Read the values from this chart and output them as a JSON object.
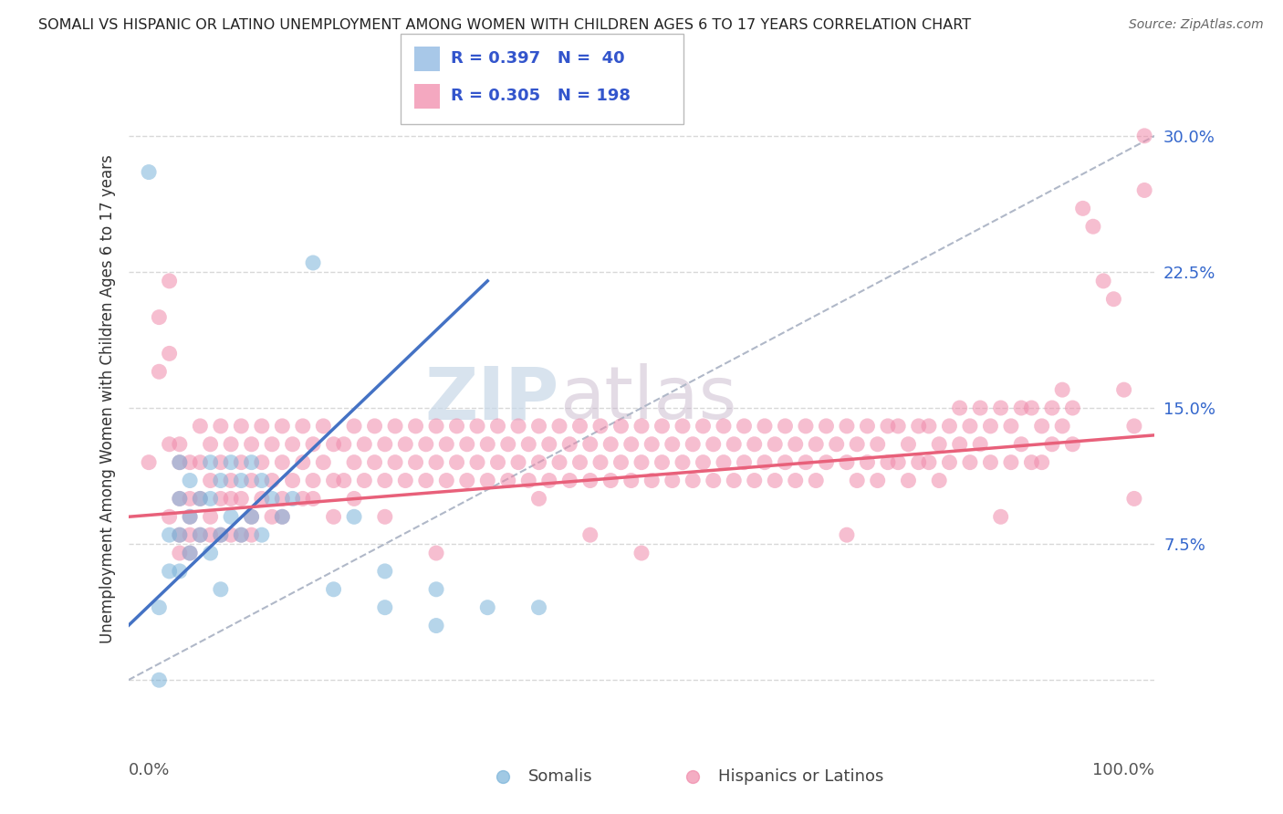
{
  "title": "SOMALI VS HISPANIC OR LATINO UNEMPLOYMENT AMONG WOMEN WITH CHILDREN AGES 6 TO 17 YEARS CORRELATION CHART",
  "source": "Source: ZipAtlas.com",
  "ylabel": "Unemployment Among Women with Children Ages 6 to 17 years",
  "yticks": [
    0.0,
    0.075,
    0.15,
    0.225,
    0.3
  ],
  "ytick_labels": [
    "",
    "7.5%",
    "15.0%",
    "22.5%",
    "30.0%"
  ],
  "xlim": [
    0.0,
    1.0
  ],
  "ylim": [
    -0.02,
    0.33
  ],
  "watermark_zip": "ZIP",
  "watermark_atlas": "atlas",
  "background_color": "#ffffff",
  "grid_color": "#d8d8d8",
  "somali_color": "#7ab3d9",
  "hispanic_color": "#f08aaa",
  "somali_line_color": "#4472c4",
  "hispanic_line_color": "#e8607a",
  "ref_line_color": "#b0b8c8",
  "somali_scatter": [
    [
      0.02,
      0.28
    ],
    [
      0.03,
      0.0
    ],
    [
      0.03,
      0.04
    ],
    [
      0.04,
      0.08
    ],
    [
      0.04,
      0.06
    ],
    [
      0.05,
      0.12
    ],
    [
      0.05,
      0.1
    ],
    [
      0.05,
      0.08
    ],
    [
      0.05,
      0.06
    ],
    [
      0.06,
      0.11
    ],
    [
      0.06,
      0.09
    ],
    [
      0.06,
      0.07
    ],
    [
      0.07,
      0.1
    ],
    [
      0.07,
      0.08
    ],
    [
      0.08,
      0.12
    ],
    [
      0.08,
      0.1
    ],
    [
      0.08,
      0.07
    ],
    [
      0.09,
      0.11
    ],
    [
      0.09,
      0.08
    ],
    [
      0.09,
      0.05
    ],
    [
      0.1,
      0.12
    ],
    [
      0.1,
      0.09
    ],
    [
      0.11,
      0.11
    ],
    [
      0.11,
      0.08
    ],
    [
      0.12,
      0.12
    ],
    [
      0.12,
      0.09
    ],
    [
      0.13,
      0.11
    ],
    [
      0.13,
      0.08
    ],
    [
      0.14,
      0.1
    ],
    [
      0.15,
      0.09
    ],
    [
      0.16,
      0.1
    ],
    [
      0.18,
      0.23
    ],
    [
      0.2,
      0.05
    ],
    [
      0.22,
      0.09
    ],
    [
      0.25,
      0.06
    ],
    [
      0.25,
      0.04
    ],
    [
      0.3,
      0.05
    ],
    [
      0.3,
      0.03
    ],
    [
      0.35,
      0.04
    ],
    [
      0.4,
      0.04
    ]
  ],
  "hispanic_scatter": [
    [
      0.02,
      0.12
    ],
    [
      0.03,
      0.2
    ],
    [
      0.03,
      0.17
    ],
    [
      0.04,
      0.22
    ],
    [
      0.04,
      0.18
    ],
    [
      0.04,
      0.13
    ],
    [
      0.04,
      0.09
    ],
    [
      0.05,
      0.12
    ],
    [
      0.05,
      0.1
    ],
    [
      0.05,
      0.08
    ],
    [
      0.05,
      0.13
    ],
    [
      0.05,
      0.07
    ],
    [
      0.06,
      0.12
    ],
    [
      0.06,
      0.1
    ],
    [
      0.06,
      0.09
    ],
    [
      0.06,
      0.08
    ],
    [
      0.06,
      0.07
    ],
    [
      0.07,
      0.14
    ],
    [
      0.07,
      0.12
    ],
    [
      0.07,
      0.1
    ],
    [
      0.07,
      0.08
    ],
    [
      0.08,
      0.13
    ],
    [
      0.08,
      0.11
    ],
    [
      0.08,
      0.09
    ],
    [
      0.08,
      0.08
    ],
    [
      0.09,
      0.14
    ],
    [
      0.09,
      0.12
    ],
    [
      0.09,
      0.1
    ],
    [
      0.09,
      0.08
    ],
    [
      0.1,
      0.13
    ],
    [
      0.1,
      0.11
    ],
    [
      0.1,
      0.1
    ],
    [
      0.1,
      0.08
    ],
    [
      0.11,
      0.14
    ],
    [
      0.11,
      0.12
    ],
    [
      0.11,
      0.1
    ],
    [
      0.11,
      0.08
    ],
    [
      0.12,
      0.13
    ],
    [
      0.12,
      0.11
    ],
    [
      0.12,
      0.09
    ],
    [
      0.12,
      0.08
    ],
    [
      0.13,
      0.14
    ],
    [
      0.13,
      0.12
    ],
    [
      0.13,
      0.1
    ],
    [
      0.14,
      0.13
    ],
    [
      0.14,
      0.11
    ],
    [
      0.14,
      0.09
    ],
    [
      0.15,
      0.14
    ],
    [
      0.15,
      0.12
    ],
    [
      0.15,
      0.1
    ],
    [
      0.15,
      0.09
    ],
    [
      0.16,
      0.13
    ],
    [
      0.16,
      0.11
    ],
    [
      0.17,
      0.14
    ],
    [
      0.17,
      0.12
    ],
    [
      0.17,
      0.1
    ],
    [
      0.18,
      0.13
    ],
    [
      0.18,
      0.11
    ],
    [
      0.18,
      0.1
    ],
    [
      0.19,
      0.14
    ],
    [
      0.19,
      0.12
    ],
    [
      0.2,
      0.13
    ],
    [
      0.2,
      0.11
    ],
    [
      0.2,
      0.09
    ],
    [
      0.21,
      0.13
    ],
    [
      0.21,
      0.11
    ],
    [
      0.22,
      0.14
    ],
    [
      0.22,
      0.12
    ],
    [
      0.22,
      0.1
    ],
    [
      0.23,
      0.13
    ],
    [
      0.23,
      0.11
    ],
    [
      0.24,
      0.14
    ],
    [
      0.24,
      0.12
    ],
    [
      0.25,
      0.13
    ],
    [
      0.25,
      0.11
    ],
    [
      0.25,
      0.09
    ],
    [
      0.26,
      0.14
    ],
    [
      0.26,
      0.12
    ],
    [
      0.27,
      0.13
    ],
    [
      0.27,
      0.11
    ],
    [
      0.28,
      0.14
    ],
    [
      0.28,
      0.12
    ],
    [
      0.29,
      0.13
    ],
    [
      0.29,
      0.11
    ],
    [
      0.3,
      0.14
    ],
    [
      0.3,
      0.12
    ],
    [
      0.3,
      0.07
    ],
    [
      0.31,
      0.13
    ],
    [
      0.31,
      0.11
    ],
    [
      0.32,
      0.14
    ],
    [
      0.32,
      0.12
    ],
    [
      0.33,
      0.13
    ],
    [
      0.33,
      0.11
    ],
    [
      0.34,
      0.14
    ],
    [
      0.34,
      0.12
    ],
    [
      0.35,
      0.13
    ],
    [
      0.35,
      0.11
    ],
    [
      0.36,
      0.14
    ],
    [
      0.36,
      0.12
    ],
    [
      0.37,
      0.13
    ],
    [
      0.37,
      0.11
    ],
    [
      0.38,
      0.14
    ],
    [
      0.38,
      0.12
    ],
    [
      0.39,
      0.13
    ],
    [
      0.39,
      0.11
    ],
    [
      0.4,
      0.14
    ],
    [
      0.4,
      0.12
    ],
    [
      0.4,
      0.1
    ],
    [
      0.41,
      0.13
    ],
    [
      0.41,
      0.11
    ],
    [
      0.42,
      0.14
    ],
    [
      0.42,
      0.12
    ],
    [
      0.43,
      0.13
    ],
    [
      0.43,
      0.11
    ],
    [
      0.44,
      0.14
    ],
    [
      0.44,
      0.12
    ],
    [
      0.45,
      0.13
    ],
    [
      0.45,
      0.11
    ],
    [
      0.45,
      0.08
    ],
    [
      0.46,
      0.14
    ],
    [
      0.46,
      0.12
    ],
    [
      0.47,
      0.13
    ],
    [
      0.47,
      0.11
    ],
    [
      0.48,
      0.14
    ],
    [
      0.48,
      0.12
    ],
    [
      0.49,
      0.13
    ],
    [
      0.49,
      0.11
    ],
    [
      0.5,
      0.14
    ],
    [
      0.5,
      0.12
    ],
    [
      0.5,
      0.07
    ],
    [
      0.51,
      0.13
    ],
    [
      0.51,
      0.11
    ],
    [
      0.52,
      0.14
    ],
    [
      0.52,
      0.12
    ],
    [
      0.53,
      0.13
    ],
    [
      0.53,
      0.11
    ],
    [
      0.54,
      0.14
    ],
    [
      0.54,
      0.12
    ],
    [
      0.55,
      0.13
    ],
    [
      0.55,
      0.11
    ],
    [
      0.56,
      0.14
    ],
    [
      0.56,
      0.12
    ],
    [
      0.57,
      0.13
    ],
    [
      0.57,
      0.11
    ],
    [
      0.58,
      0.14
    ],
    [
      0.58,
      0.12
    ],
    [
      0.59,
      0.13
    ],
    [
      0.59,
      0.11
    ],
    [
      0.6,
      0.14
    ],
    [
      0.6,
      0.12
    ],
    [
      0.61,
      0.13
    ],
    [
      0.61,
      0.11
    ],
    [
      0.62,
      0.14
    ],
    [
      0.62,
      0.12
    ],
    [
      0.63,
      0.13
    ],
    [
      0.63,
      0.11
    ],
    [
      0.64,
      0.14
    ],
    [
      0.64,
      0.12
    ],
    [
      0.65,
      0.13
    ],
    [
      0.65,
      0.11
    ],
    [
      0.66,
      0.14
    ],
    [
      0.66,
      0.12
    ],
    [
      0.67,
      0.13
    ],
    [
      0.67,
      0.11
    ],
    [
      0.68,
      0.14
    ],
    [
      0.68,
      0.12
    ],
    [
      0.69,
      0.13
    ],
    [
      0.7,
      0.14
    ],
    [
      0.7,
      0.12
    ],
    [
      0.7,
      0.08
    ],
    [
      0.71,
      0.13
    ],
    [
      0.71,
      0.11
    ],
    [
      0.72,
      0.14
    ],
    [
      0.72,
      0.12
    ],
    [
      0.73,
      0.13
    ],
    [
      0.73,
      0.11
    ],
    [
      0.74,
      0.14
    ],
    [
      0.74,
      0.12
    ],
    [
      0.75,
      0.14
    ],
    [
      0.75,
      0.12
    ],
    [
      0.76,
      0.13
    ],
    [
      0.76,
      0.11
    ],
    [
      0.77,
      0.14
    ],
    [
      0.77,
      0.12
    ],
    [
      0.78,
      0.14
    ],
    [
      0.78,
      0.12
    ],
    [
      0.79,
      0.13
    ],
    [
      0.79,
      0.11
    ],
    [
      0.8,
      0.14
    ],
    [
      0.8,
      0.12
    ],
    [
      0.81,
      0.15
    ],
    [
      0.81,
      0.13
    ],
    [
      0.82,
      0.14
    ],
    [
      0.82,
      0.12
    ],
    [
      0.83,
      0.15
    ],
    [
      0.83,
      0.13
    ],
    [
      0.84,
      0.14
    ],
    [
      0.84,
      0.12
    ],
    [
      0.85,
      0.15
    ],
    [
      0.85,
      0.09
    ],
    [
      0.86,
      0.14
    ],
    [
      0.86,
      0.12
    ],
    [
      0.87,
      0.15
    ],
    [
      0.87,
      0.13
    ],
    [
      0.88,
      0.15
    ],
    [
      0.88,
      0.12
    ],
    [
      0.89,
      0.14
    ],
    [
      0.89,
      0.12
    ],
    [
      0.9,
      0.15
    ],
    [
      0.9,
      0.13
    ],
    [
      0.91,
      0.16
    ],
    [
      0.91,
      0.14
    ],
    [
      0.92,
      0.15
    ],
    [
      0.92,
      0.13
    ],
    [
      0.93,
      0.26
    ],
    [
      0.94,
      0.25
    ],
    [
      0.95,
      0.22
    ],
    [
      0.96,
      0.21
    ],
    [
      0.97,
      0.16
    ],
    [
      0.98,
      0.14
    ],
    [
      0.98,
      0.1
    ],
    [
      0.99,
      0.3
    ],
    [
      0.99,
      0.27
    ]
  ],
  "somali_trend": [
    0.0,
    0.35,
    0.03,
    0.22
  ],
  "hispanic_trend": [
    0.0,
    1.0,
    0.09,
    0.135
  ],
  "ref_line": [
    0.0,
    1.0,
    0.0,
    0.3
  ]
}
